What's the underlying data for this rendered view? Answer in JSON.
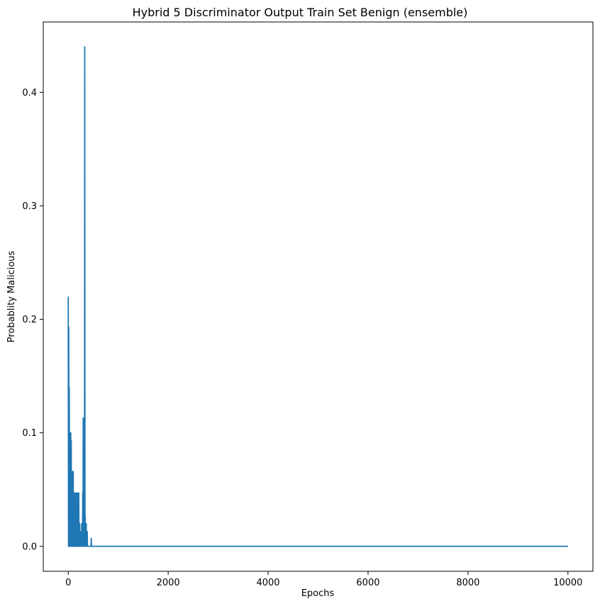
{
  "chart_data": {
    "type": "line",
    "title": "Hybrid 5 Discriminator Output Train Set Benign (ensemble)",
    "xlabel": "Epochs",
    "ylabel": "Probablity Malicious",
    "xlim": [
      -500,
      10500
    ],
    "ylim": [
      -0.022,
      0.462
    ],
    "xticks": [
      0,
      2000,
      4000,
      6000,
      8000,
      10000
    ],
    "xtick_labels": [
      "0",
      "2000",
      "4000",
      "6000",
      "8000",
      "10000"
    ],
    "yticks": [
      0.0,
      0.1,
      0.2,
      0.3,
      0.4
    ],
    "ytick_labels": [
      "0.0",
      "0.1",
      "0.2",
      "0.3",
      "0.4"
    ],
    "grid": false,
    "line_color": "#1f77b4",
    "series": [
      {
        "x": [
          0,
          5,
          10,
          15,
          20,
          25,
          30,
          35,
          40,
          45,
          50,
          55,
          60,
          65,
          70,
          75,
          80,
          85,
          90,
          95,
          100,
          105,
          110,
          115,
          120,
          125,
          130,
          135,
          140,
          145,
          150,
          155,
          160,
          165,
          170,
          175,
          180,
          185,
          190,
          195,
          200,
          205,
          210,
          215,
          220,
          225,
          230,
          235,
          240,
          245,
          250,
          255,
          260,
          265,
          270,
          275,
          280,
          285,
          290,
          295,
          300,
          305,
          310,
          315,
          320,
          325,
          330,
          335,
          340,
          345,
          350,
          355,
          360,
          365,
          370,
          375,
          380,
          385,
          390,
          395,
          400,
          405,
          410,
          415,
          420,
          425,
          430,
          435,
          440,
          445,
          450,
          455,
          460,
          465,
          470,
          475,
          480,
          500,
          1000,
          2000,
          4000,
          6000,
          8000,
          10000
        ],
        "y": [
          0.22,
          0.0,
          0.193,
          0.0,
          0.14,
          0.027,
          0.1,
          0.0,
          0.066,
          0.0,
          0.1,
          0.013,
          0.093,
          0.0,
          0.04,
          0.0,
          0.066,
          0.0,
          0.02,
          0.0,
          0.066,
          0.0,
          0.047,
          0.0,
          0.013,
          0.0,
          0.047,
          0.0,
          0.027,
          0.0,
          0.047,
          0.0,
          0.02,
          0.0,
          0.047,
          0.0,
          0.013,
          0.0,
          0.047,
          0.0,
          0.007,
          0.0,
          0.047,
          0.0,
          0.013,
          0.0,
          0.02,
          0.0,
          0.013,
          0.0,
          0.007,
          0.0,
          0.013,
          0.0,
          0.02,
          0.0,
          0.007,
          0.0,
          0.047,
          0.0,
          0.113,
          0.0,
          0.053,
          0.0,
          0.113,
          0.0,
          0.44,
          0.0,
          0.027,
          0.0,
          0.013,
          0.0,
          0.02,
          0.0,
          0.007,
          0.0,
          0.013,
          0.0,
          0.0,
          0.0,
          0.0,
          0.0,
          0.0,
          0.0,
          0.0,
          0.0,
          0.0,
          0.0,
          0.0,
          0.0,
          0.0,
          0.0,
          0.007,
          0.0,
          0.0,
          0.0,
          0.0,
          0.0,
          0.0,
          0.0,
          0.0,
          0.0,
          0.0,
          0.0
        ]
      }
    ]
  }
}
